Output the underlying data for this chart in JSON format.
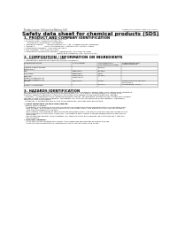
{
  "bg_color": "#ffffff",
  "header_top_left": "Product name: Lithium Ion Battery Cell",
  "header_top_right": "Substance number: SBM-001-00010\nEstablished / Revision: Dec.7.2019",
  "title": "Safety data sheet for chemical products (SDS)",
  "section1_title": "1. PRODUCT AND COMPANY IDENTIFICATION",
  "section1_lines": [
    "• Product name: Lithium Ion Battery Cell",
    "• Product code: Cylindrical-type cell",
    "     SV168500, SV186500, SV168500A",
    "• Company name:      Sanyo Electric Co., Ltd.  Mobile Energy Company",
    "• Address:              2001, Kamikawaen, Sumoto City, Hyogo, Japan",
    "• Telephone number:  +81-799-26-4111",
    "• Fax number: +81-799-26-4128",
    "• Emergency telephone number: (Weekdays) +81-799-26-3862",
    "                                                 (Night and holidays) +81-799-26-4121"
  ],
  "section2_title": "2. COMPOSITION / INFORMATION ON INGREDIENTS",
  "section2_sub": "• Substance or preparation: Preparation",
  "section2_sub2": "• Information about the chemical nature of product:",
  "table_headers": [
    "Component name",
    "CAS number",
    "Concentration /\nConcentration range",
    "Classification and\nhazard labeling"
  ],
  "table_rows": [
    [
      "Lithium cobalt oxides\n(LiMnCoO₂)",
      "",
      "20-60%",
      ""
    ],
    [
      "Iron",
      "7439-89-6",
      "10-25%",
      ""
    ],
    [
      "Aluminum",
      "7429-90-5",
      "2-5%",
      ""
    ],
    [
      "Graphite\n(Flake or graphite-1)\n(All-flake graphite-1)",
      "17782-42-5\n17782-44-2",
      "10-25%",
      ""
    ],
    [
      "Copper",
      "7440-50-8",
      "5-15%",
      "Sensitization of the skin\ngroup No.2"
    ],
    [
      "Organic electrolyte",
      "",
      "10-20%",
      "Inflammable liquid"
    ]
  ],
  "section3_title": "3. HAZARDS IDENTIFICATION",
  "section3_body": [
    "For the battery cell, chemical materials are stored in a hermetically sealed steel case, designed to withstand",
    "temperature and pressure variations during normal use. As a result, during normal use, there is no",
    "physical danger of ignition or explosion and there is no danger of hazardous materials leakage.",
    "  However, if exposed to a fire, added mechanical shocks, decomposed, written electric enters may release",
    "the gas breaks cannot be operated. The battery cell case will be breached of fire-patterns. Hazardous",
    "materials may be released.",
    "  Moreover, if heated strongly by the surrounding fire, soot gas may be emitted."
  ],
  "section3_sub1": "• Most important hazard and effects:",
  "section3_sub1_body": [
    "Human health effects:",
    "  Inhalation: The release of the electrolyte has an anesthesia action and stimulates in respiratory tract.",
    "  Skin contact: The release of the electrolyte stimulates a skin. The electrolyte skin contact causes a",
    "  sore and stimulation on the skin.",
    "  Eye contact: The release of the electrolyte stimulates eyes. The electrolyte eye contact causes a sore",
    "  and stimulation on the eye. Especially, a substance that causes a strong inflammation of the eyes is",
    "  contained.",
    "  Environmental effects: Since a battery cell remains in the environment, do not throw out it into the",
    "  environment."
  ],
  "section3_sub2": "• Specific hazards:",
  "section3_sub2_body": [
    "  If the electrolyte contacts with water, it will generate detrimental hydrogen fluoride.",
    "  Since the used electrolyte is inflammable liquid, do not bring close to fire."
  ],
  "line_color": "#888888",
  "line_color2": "#cccccc",
  "table_border_color": "#999999",
  "table_header_bg": "#e8e8e8"
}
